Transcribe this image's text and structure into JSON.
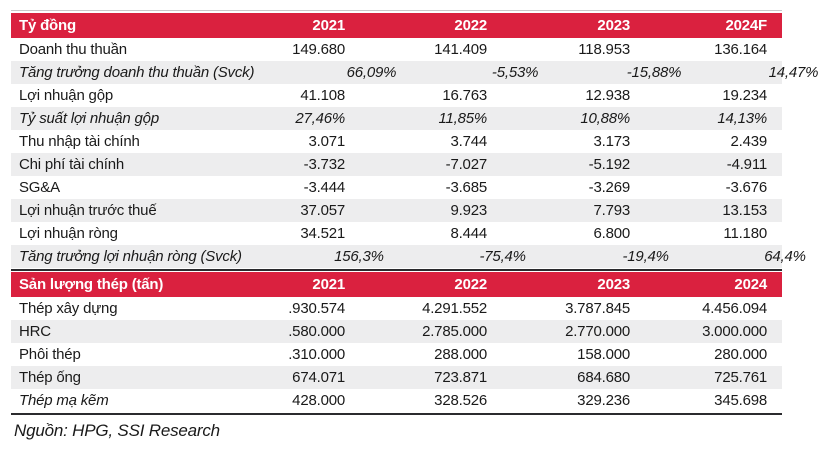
{
  "colors": {
    "header_red": "#DA213F",
    "stripe": "#EDEDEE",
    "text": "#1a1a1a",
    "rule_dark": "#2b2b2e",
    "rule_light": "#c9c9cb"
  },
  "financials": {
    "unit_label": "Tỷ đồng",
    "columns": [
      "2021",
      "2022",
      "2023",
      "2024F"
    ],
    "rows": [
      {
        "label": "Doanh thu thuần",
        "values": [
          "149.680",
          "141.409",
          "118.953",
          "136.164"
        ],
        "style": "normal"
      },
      {
        "label": "Tăng trưởng doanh thu thuần (Svck)",
        "values": [
          "66,09%",
          "-5,53%",
          "-15,88%",
          "14,47%"
        ],
        "style": "italic"
      },
      {
        "label": "Lợi nhuận gộp",
        "values": [
          "41.108",
          "16.763",
          "12.938",
          "19.234"
        ],
        "style": "normal"
      },
      {
        "label": "Tỷ suất lợi nhuận gộp",
        "values": [
          "27,46%",
          "11,85%",
          "10,88%",
          "14,13%"
        ],
        "style": "italic"
      },
      {
        "label": "Thu nhập tài chính",
        "values": [
          "3.071",
          "3.744",
          "3.173",
          "2.439"
        ],
        "style": "normal"
      },
      {
        "label": "Chi phí tài chính",
        "values": [
          "-3.732",
          "-7.027",
          "-5.192",
          "-4.911"
        ],
        "style": "normal"
      },
      {
        "label": "SG&A",
        "values": [
          "-3.444",
          "-3.685",
          "-3.269",
          "-3.676"
        ],
        "style": "normal"
      },
      {
        "label": "Lợi nhuận trước thuế",
        "values": [
          "37.057",
          "9.923",
          "7.793",
          "13.153"
        ],
        "style": "normal"
      },
      {
        "label": "Lợi nhuận ròng",
        "values": [
          "34.521",
          "8.444",
          "6.800",
          "11.180"
        ],
        "style": "normal"
      },
      {
        "label": "Tăng trưởng lợi nhuận ròng (Svck)",
        "values": [
          "156,3%",
          "-75,4%",
          "-19,4%",
          "64,4%"
        ],
        "style": "italic"
      }
    ]
  },
  "steel_volume": {
    "unit_label": "Sản lượng thép (tấn)",
    "columns": [
      "2021",
      "2022",
      "2023",
      "2024"
    ],
    "rows": [
      {
        "label": "Thép xây dựng",
        "values": [
          ".930.574",
          "4.291.552",
          "3.787.845",
          "4.456.094"
        ],
        "style": "normal"
      },
      {
        "label": "HRC",
        "values": [
          ".580.000",
          "2.785.000",
          "2.770.000",
          "3.000.000"
        ],
        "style": "normal"
      },
      {
        "label": "Phôi thép",
        "values": [
          ".310.000",
          "288.000",
          "158.000",
          "280.000"
        ],
        "style": "normal"
      },
      {
        "label": "Thép ống",
        "values": [
          "674.071",
          "723.871",
          "684.680",
          "725.761"
        ],
        "style": "normal"
      },
      {
        "label": "Thép mạ kẽm",
        "values": [
          "428.000",
          "328.526",
          "329.236",
          "345.698"
        ],
        "style": "label-italic"
      }
    ]
  },
  "source_note": "Nguồn: HPG, SSI Research"
}
